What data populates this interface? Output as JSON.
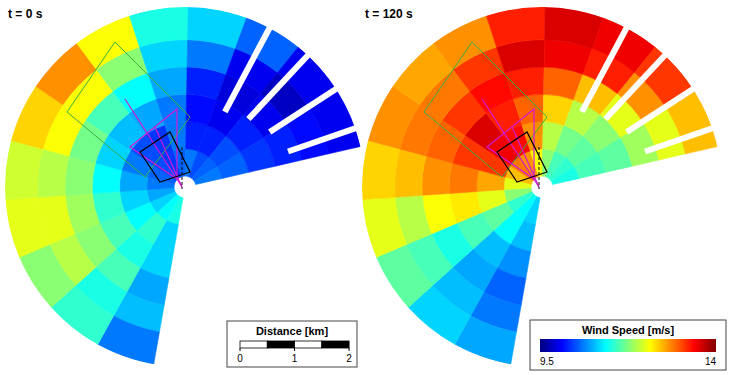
{
  "chart_data": [
    {
      "type": "polar_heatmap",
      "title": "t = 0 s",
      "azimuth_edges": [
        -170,
        -151,
        -132,
        -113,
        -94,
        -75,
        -56,
        -37,
        -18,
        1,
        20,
        39,
        58,
        77
      ],
      "range_edges": [
        0.2,
        0.7,
        1.2,
        1.7,
        2.2,
        2.7,
        3.3
      ],
      "values": [
        [
          11.3,
          11.2,
          11.0,
          10.8,
          10.6,
          10.5,
          10.4,
          10.3,
          10.5,
          10.6,
          10.4,
          10.5,
          10.6
        ],
        [
          11.0,
          11.4,
          11.2,
          11.0,
          10.8,
          10.6,
          10.4,
          10.3,
          10.6,
          10.2,
          10.2,
          10.4,
          10.5
        ],
        [
          11.0,
          11.3,
          11.5,
          11.4,
          11.2,
          11.0,
          10.9,
          10.8,
          10.6,
          10.1,
          10.0,
          10.2,
          10.3
        ],
        [
          10.8,
          11.5,
          11.8,
          11.9,
          11.8,
          11.7,
          11.5,
          11.2,
          10.8,
          10.2,
          9.9,
          10.0,
          10.2
        ],
        [
          10.9,
          11.3,
          12.0,
          12.2,
          12.0,
          12.3,
          12.3,
          11.8,
          11.0,
          10.6,
          10.0,
          9.8,
          10.1
        ],
        [
          10.6,
          11.4,
          11.8,
          12.2,
          12.1,
          12.5,
          12.8,
          12.3,
          11.3,
          11.0,
          10.5,
          10.0,
          10.0
        ]
      ],
      "scale_bar": {
        "title": "Distance [km]",
        "ticks": [
          0,
          1,
          2
        ]
      }
    },
    {
      "type": "polar_heatmap",
      "title": "t = 120 s",
      "azimuth_edges": [
        -170,
        -151,
        -132,
        -113,
        -94,
        -75,
        -56,
        -37,
        -18,
        1,
        20,
        39,
        58,
        77
      ],
      "range_edges": [
        0.2,
        0.7,
        1.2,
        1.7,
        2.2,
        2.7,
        3.3
      ],
      "values": [
        [
          11.0,
          11.2,
          11.4,
          11.8,
          12.2,
          12.6,
          12.9,
          12.8,
          12.3,
          11.8,
          11.5,
          11.4,
          11.3
        ],
        [
          10.9,
          11.2,
          11.6,
          12.2,
          12.7,
          13.2,
          13.5,
          13.4,
          12.8,
          12.0,
          11.7,
          11.6,
          11.5
        ],
        [
          10.7,
          10.9,
          11.5,
          12.4,
          12.9,
          13.2,
          13.6,
          13.3,
          13.0,
          12.5,
          12.0,
          11.8,
          11.6
        ],
        [
          10.5,
          10.8,
          11.3,
          12.3,
          12.8,
          13.0,
          13.2,
          13.4,
          13.3,
          13.0,
          12.6,
          12.2,
          11.9
        ],
        [
          10.6,
          10.9,
          11.5,
          12.0,
          12.6,
          12.9,
          12.9,
          13.2,
          13.6,
          13.5,
          13.3,
          12.8,
          12.2
        ],
        [
          10.8,
          11.0,
          11.6,
          12.2,
          12.5,
          12.8,
          12.7,
          12.8,
          13.3,
          13.6,
          13.5,
          13.2,
          12.6
        ]
      ],
      "colorbar": {
        "title": "Wind Speed [m/s]",
        "range": [
          9.5,
          14
        ],
        "ticks": [
          9.5,
          14
        ]
      }
    }
  ]
}
